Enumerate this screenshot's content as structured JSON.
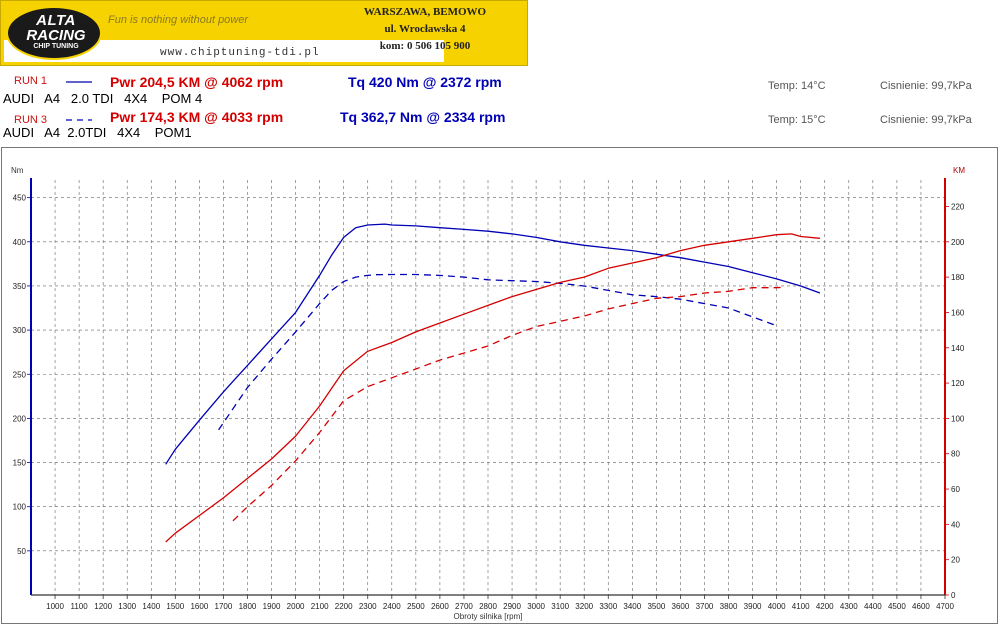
{
  "header": {
    "logo_line1": "ALTA",
    "logo_line2": "RACING",
    "logo_line3": "CHIP TUNING",
    "slogan": "Fun is nothing without power",
    "website": "www.chiptuning-tdi.pl",
    "address_line1": "WARSZAWA, BEMOWO",
    "address_line2": "ul. Wrocławska 4",
    "address_line3": "kom: 0 506 105 900"
  },
  "runs": [
    {
      "label": "RUN 1",
      "legend_style": "solid",
      "power": "Pwr 204,5 KM @ 4062 rpm",
      "torque": "Tq 420 Nm @ 2372 rpm",
      "car": "AUDI   A4   2.0 TDI   4X4    POM 4",
      "temp": "Temp: 14°C",
      "pressure": "Cisnienie: 99,7kPa"
    },
    {
      "label": "RUN 3",
      "legend_style": "dashed",
      "power": "Pwr 174,3 KM @ 4033 rpm",
      "torque": "Tq 362,7 Nm @ 2334 rpm",
      "car": "AUDI   A4  2.0TDI   4X4    POM1",
      "temp": "Temp: 15°C",
      "pressure": "Cisnienie: 99,7kPa"
    }
  ],
  "chart_data": {
    "type": "line",
    "xlabel": "Obroty silnika [rpm]",
    "ylabel_left": "Nm",
    "ylabel_right": "KM",
    "xlim": [
      900,
      4700
    ],
    "xticks": [
      1000,
      1100,
      1200,
      1300,
      1400,
      1500,
      1600,
      1700,
      1800,
      1900,
      2000,
      2100,
      2200,
      2300,
      2400,
      2500,
      2600,
      2700,
      2800,
      2900,
      3000,
      3100,
      3200,
      3300,
      3400,
      3500,
      3600,
      3700,
      3800,
      3900,
      4000,
      4100,
      4200,
      4300,
      4400,
      4500,
      4600,
      4700
    ],
    "ylim_left": [
      0,
      470
    ],
    "yticks_left": [
      50,
      100,
      150,
      200,
      250,
      300,
      350,
      400,
      450
    ],
    "ylim_right": [
      0,
      235
    ],
    "yticks_right": [
      0,
      20,
      40,
      60,
      80,
      100,
      120,
      140,
      160,
      180,
      200,
      220
    ],
    "grid": true,
    "colors": {
      "torque": "#0000b4",
      "power": "#d40000"
    },
    "series": [
      {
        "axis": "left",
        "style": "solid",
        "color": "#0000b4",
        "x": [
          1460,
          1500,
          1600,
          1700,
          1800,
          1900,
          2000,
          2100,
          2150,
          2200,
          2250,
          2300,
          2372,
          2400,
          2500,
          2600,
          2700,
          2800,
          2900,
          3000,
          3100,
          3200,
          3300,
          3400,
          3500,
          3600,
          3700,
          3800,
          3900,
          4000,
          4100,
          4180
        ],
        "y": [
          148,
          165,
          198,
          230,
          260,
          290,
          320,
          362,
          385,
          405,
          416,
          419,
          420,
          419,
          418,
          416,
          414,
          412,
          409,
          405,
          400,
          396,
          393,
          390,
          386,
          382,
          377,
          372,
          365,
          358,
          350,
          342
        ]
      },
      {
        "axis": "left",
        "style": "dashed",
        "color": "#0000b4",
        "x": [
          1680,
          1700,
          1800,
          1900,
          2000,
          2100,
          2150,
          2200,
          2250,
          2300,
          2334,
          2400,
          2500,
          2600,
          2700,
          2800,
          2900,
          3000,
          3100,
          3200,
          3300,
          3400,
          3500,
          3600,
          3700,
          3800,
          3900,
          4000
        ],
        "y": [
          187,
          195,
          235,
          267,
          298,
          330,
          345,
          355,
          360,
          362,
          362.7,
          363,
          363,
          362,
          360,
          357,
          356,
          355,
          353,
          350,
          345,
          340,
          338,
          335,
          330,
          325,
          315,
          305
        ]
      },
      {
        "axis": "right",
        "style": "solid",
        "color": "#d40000",
        "x": [
          1460,
          1500,
          1600,
          1700,
          1800,
          1900,
          2000,
          2100,
          2200,
          2300,
          2400,
          2500,
          2600,
          2700,
          2800,
          2900,
          3000,
          3100,
          3200,
          3300,
          3400,
          3500,
          3600,
          3700,
          3800,
          3900,
          4000,
          4062,
          4100,
          4180
        ],
        "y": [
          30,
          35,
          45,
          55,
          66,
          77,
          90,
          107,
          127,
          138,
          143,
          149,
          154,
          159,
          164,
          169,
          173,
          177,
          180,
          185,
          188,
          191,
          195,
          198,
          200,
          202,
          204,
          204.5,
          203,
          202
        ]
      },
      {
        "axis": "right",
        "style": "dashed",
        "color": "#d40000",
        "x": [
          1740,
          1800,
          1900,
          2000,
          2100,
          2200,
          2300,
          2400,
          2500,
          2600,
          2700,
          2800,
          2900,
          3000,
          3100,
          3200,
          3300,
          3400,
          3500,
          3600,
          3700,
          3800,
          3900,
          4000,
          4033
        ],
        "y": [
          42,
          50,
          62,
          76,
          92,
          110,
          118,
          123,
          128,
          133,
          137,
          141,
          147,
          152,
          155,
          158,
          162,
          165,
          168,
          169,
          171,
          172,
          174,
          174,
          174.3
        ]
      }
    ]
  }
}
